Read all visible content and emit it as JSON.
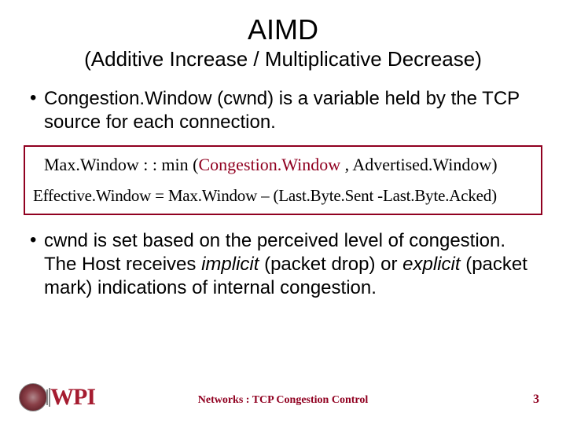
{
  "title": "AIMD",
  "subtitle": "(Additive Increase / Multiplicative Decrease)",
  "bullet1": "Congestion.Window (cwnd) is a variable held by the TCP source for each connection.",
  "formula": {
    "line1_prefix": "Max.Window : : min (",
    "line1_cw": "Congestion.Window",
    "line1_suffix": " , Advertised.Window)",
    "line2": "Effective.Window = Max.Window – (Last.Byte.Sent -Last.Byte.Acked)"
  },
  "bullet2_parts": {
    "p1": "cwnd is set based on the perceived level of congestion. The Host receives ",
    "i1": "implicit",
    "p2": " (packet drop) or ",
    "i2": "explicit",
    "p3": " (packet mark) indications of internal congestion."
  },
  "footer": {
    "center": "Networks : TCP Congestion Control",
    "page": "3",
    "logo_text": "WPI"
  },
  "colors": {
    "accent": "#900020",
    "text": "#000000",
    "background": "#ffffff"
  }
}
